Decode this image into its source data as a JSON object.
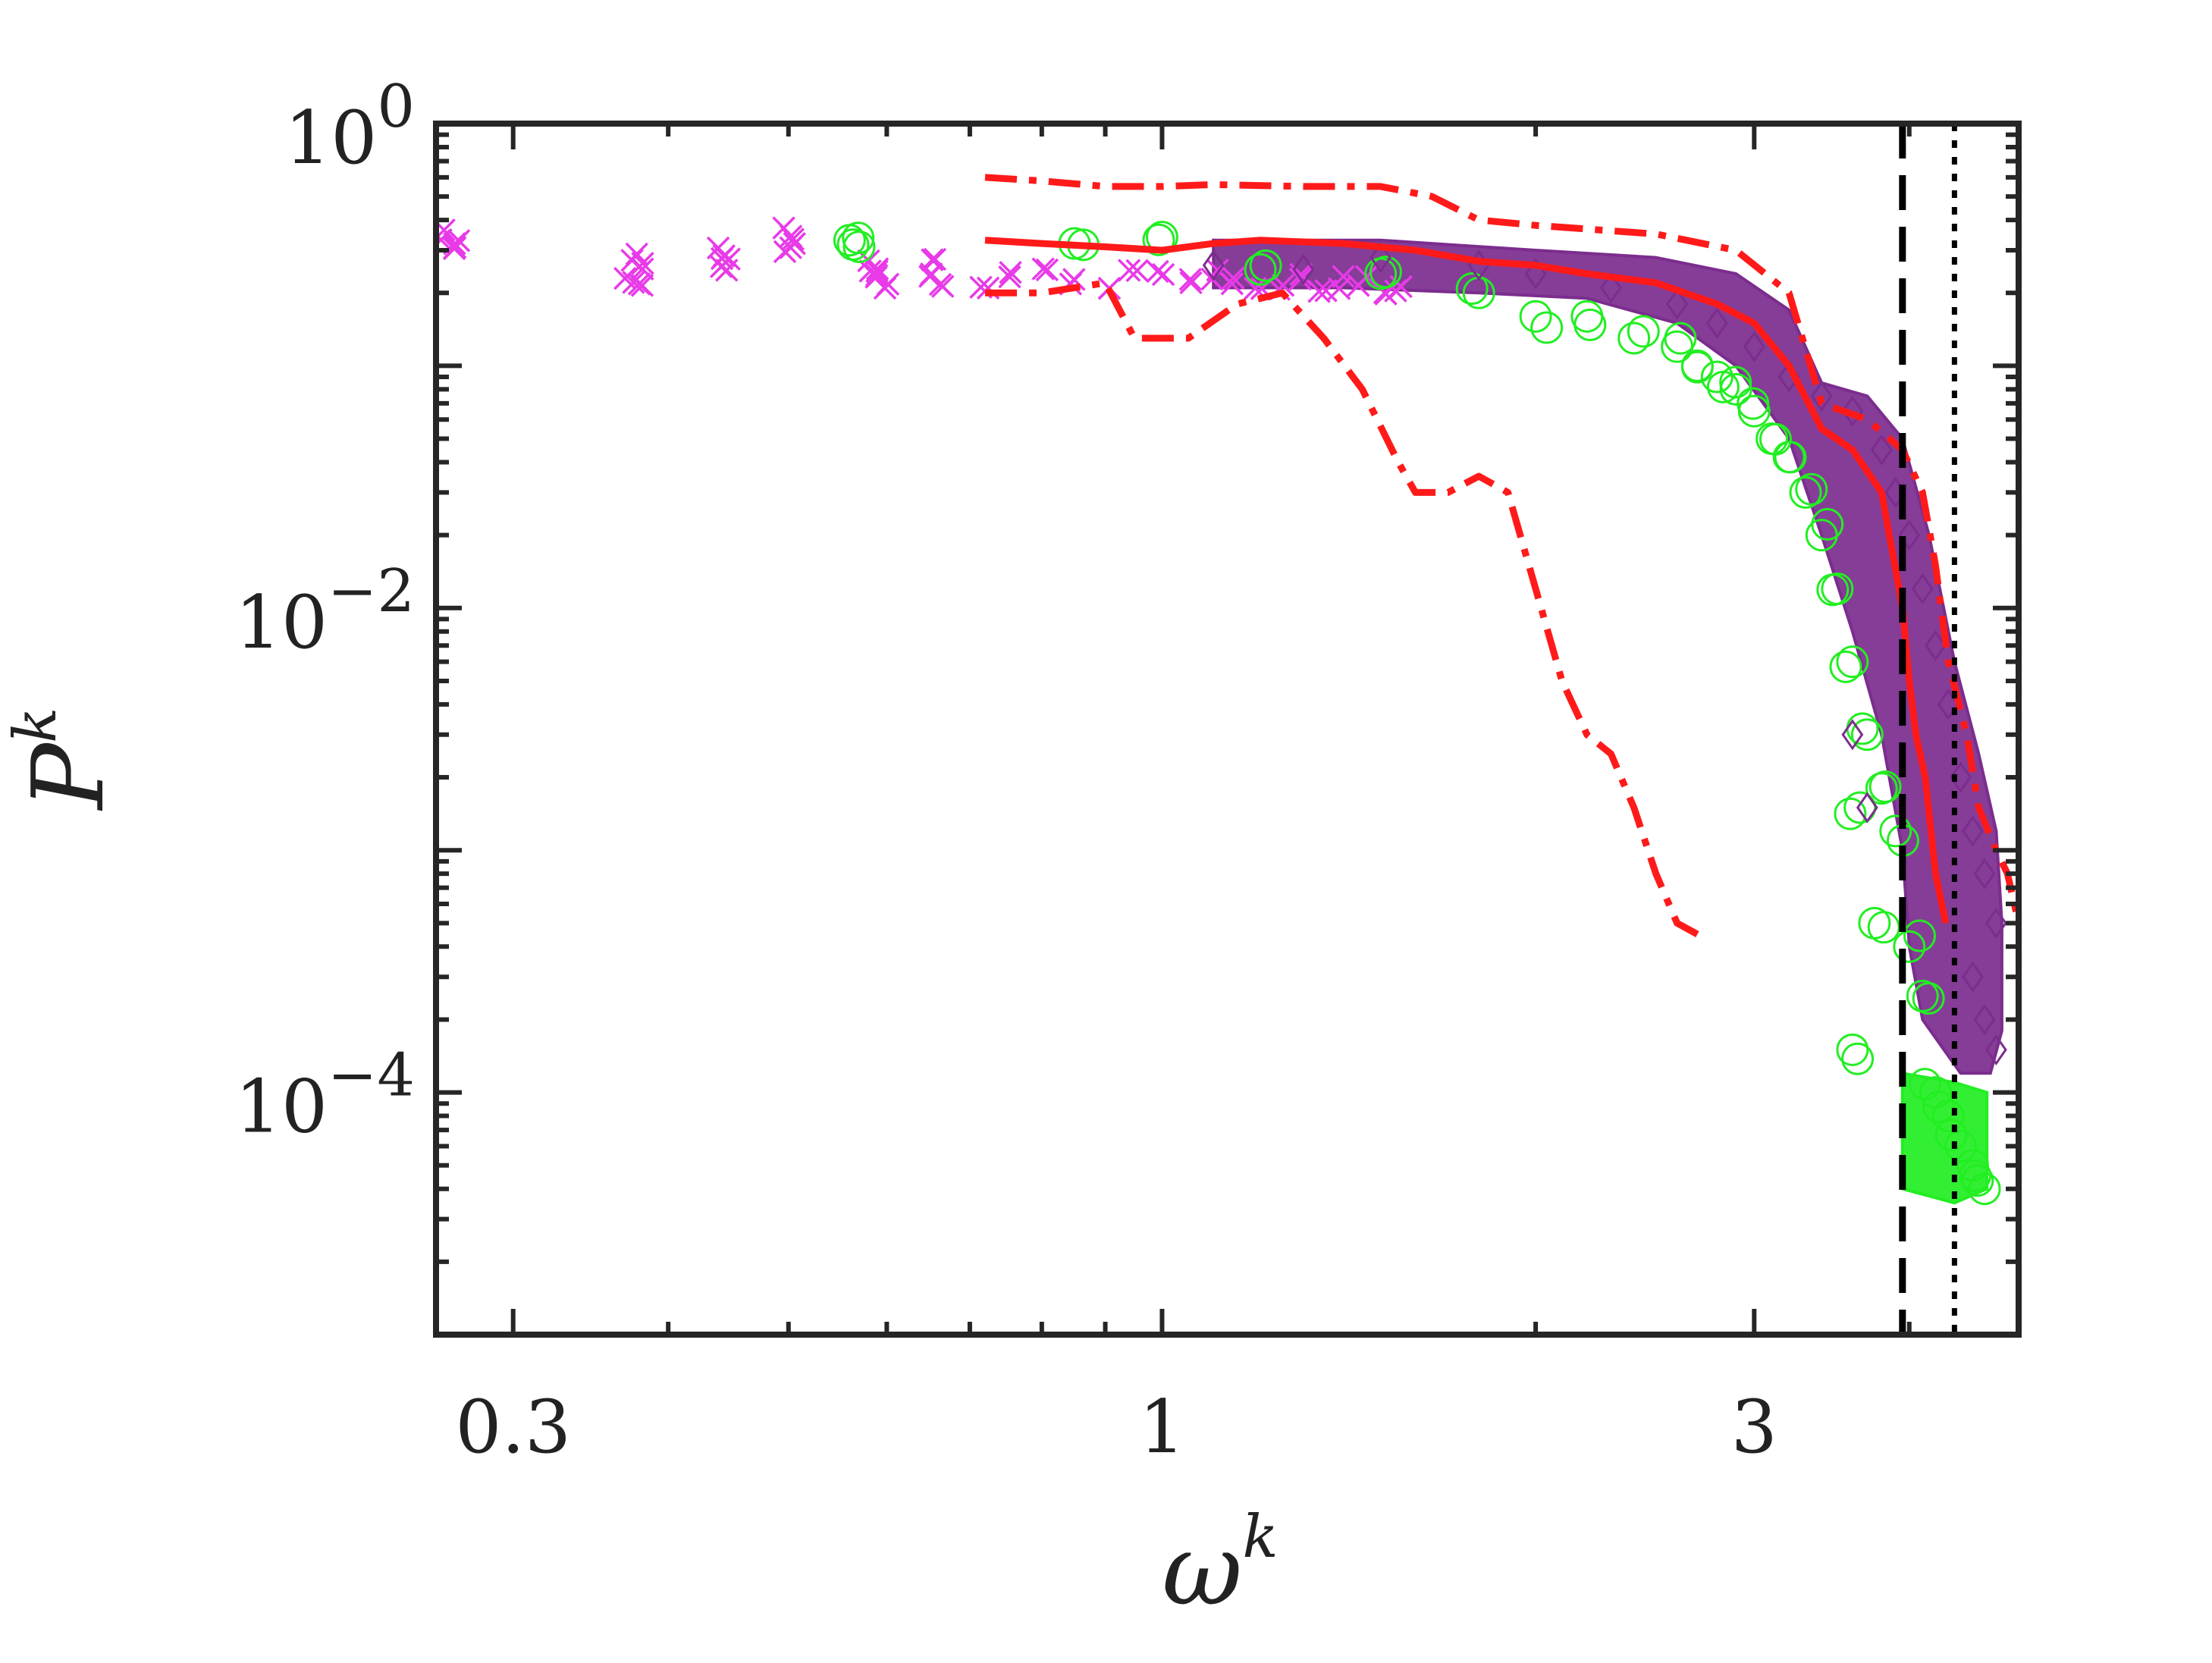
{
  "chart_data": {
    "type": "scatter",
    "xscale": "log",
    "yscale": "log",
    "xlim": [
      0.26,
      4.9
    ],
    "ylim": [
      1e-05,
      1
    ],
    "xlabel": {
      "base": "ω",
      "sup": "k"
    },
    "ylabel": {
      "base": "P",
      "sup": "k"
    },
    "xticks": [
      {
        "value": 0.3,
        "label": "0.3"
      },
      {
        "value": 1,
        "label": "1"
      },
      {
        "value": 3,
        "label": "3"
      }
    ],
    "yticks": [
      {
        "value": 0.0001,
        "base": "10",
        "exp": "−4"
      },
      {
        "value": 0.01,
        "base": "10",
        "exp": "−2"
      },
      {
        "value": 1,
        "base": "10",
        "exp": "0"
      }
    ],
    "vlines": [
      {
        "x": 3.95,
        "style": "dashed",
        "color": "#000000"
      },
      {
        "x": 4.35,
        "style": "dotted",
        "color": "#000000"
      }
    ],
    "colors": {
      "green": "#22ee22",
      "purple": "#7b2d8e",
      "magenta": "#e83ae8",
      "red": "#ff1a1a",
      "axis": "#262626"
    },
    "series": [
      {
        "marker": "x",
        "color": "#e83ae8",
        "points": [
          [
            0.265,
            0.35
          ],
          [
            0.27,
            0.33
          ],
          [
            0.268,
            0.31
          ],
          [
            0.375,
            0.28
          ],
          [
            0.38,
            0.25
          ],
          [
            0.372,
            0.23
          ],
          [
            0.378,
            0.22
          ],
          [
            0.44,
            0.3
          ],
          [
            0.445,
            0.27
          ],
          [
            0.442,
            0.25
          ],
          [
            0.5,
            0.36
          ],
          [
            0.505,
            0.32
          ],
          [
            0.498,
            0.29
          ],
          [
            0.58,
            0.26
          ],
          [
            0.59,
            0.23
          ],
          [
            0.6,
            0.21
          ],
          [
            0.585,
            0.25
          ],
          [
            0.65,
            0.24
          ],
          [
            0.66,
            0.21
          ],
          [
            0.655,
            0.27
          ],
          [
            0.72,
            0.22
          ],
          [
            0.76,
            0.23
          ],
          [
            0.8,
            0.24
          ],
          [
            0.85,
            0.23
          ],
          [
            0.9,
            0.22
          ],
          [
            0.95,
            0.24
          ],
          [
            1.0,
            0.23
          ],
          [
            1.05,
            0.22
          ],
          [
            1.1,
            0.24
          ],
          [
            1.15,
            0.23
          ],
          [
            1.2,
            0.22
          ],
          [
            1.25,
            0.22
          ],
          [
            1.3,
            0.23
          ],
          [
            1.35,
            0.21
          ],
          [
            1.4,
            0.22
          ],
          [
            1.45,
            0.22
          ],
          [
            1.5,
            0.21
          ],
          [
            1.55,
            0.21
          ]
        ]
      },
      {
        "marker": "circle",
        "color": "#22ee22",
        "points": [
          [
            0.56,
            0.33
          ],
          [
            0.57,
            0.31
          ],
          [
            0.85,
            0.32
          ],
          [
            1.0,
            0.34
          ],
          [
            1.2,
            0.25
          ],
          [
            1.5,
            0.24
          ],
          [
            1.8,
            0.2
          ],
          [
            2.0,
            0.16
          ],
          [
            2.2,
            0.16
          ],
          [
            2.4,
            0.13
          ],
          [
            2.6,
            0.12
          ],
          [
            2.7,
            0.1
          ],
          [
            2.8,
            0.09
          ],
          [
            2.9,
            0.08
          ],
          [
            3.0,
            0.065
          ],
          [
            3.1,
            0.05
          ],
          [
            3.2,
            0.042
          ],
          [
            3.3,
            0.03
          ],
          [
            3.4,
            0.02
          ],
          [
            3.5,
            0.012
          ],
          [
            3.6,
            0.006
          ],
          [
            3.7,
            0.003
          ],
          [
            3.8,
            0.0018
          ],
          [
            3.65,
            0.0015
          ],
          [
            3.9,
            0.0012
          ],
          [
            3.75,
            0.0005
          ],
          [
            4.0,
            0.0004
          ],
          [
            4.1,
            0.00025
          ],
          [
            3.6,
            0.00015
          ],
          [
            4.2,
            0.0001
          ],
          [
            4.3,
            8e-05
          ],
          [
            4.4,
            6e-05
          ],
          [
            4.5,
            5e-05
          ],
          [
            4.6,
            4e-05
          ]
        ]
      },
      {
        "marker": "diamond",
        "color": "#7b2d8e",
        "points": [
          [
            1.1,
            0.26
          ],
          [
            1.3,
            0.25
          ],
          [
            1.5,
            0.28
          ],
          [
            1.8,
            0.26
          ],
          [
            2.0,
            0.24
          ],
          [
            2.3,
            0.21
          ],
          [
            2.6,
            0.18
          ],
          [
            2.8,
            0.15
          ],
          [
            3.0,
            0.12
          ],
          [
            3.2,
            0.09
          ],
          [
            3.4,
            0.075
          ],
          [
            3.6,
            0.065
          ],
          [
            3.8,
            0.045
          ],
          [
            3.9,
            0.03
          ],
          [
            4.0,
            0.02
          ],
          [
            4.1,
            0.012
          ],
          [
            4.2,
            0.007
          ],
          [
            4.3,
            0.004
          ],
          [
            4.4,
            0.002
          ],
          [
            4.5,
            0.0012
          ],
          [
            4.6,
            0.0008
          ],
          [
            4.7,
            0.0005
          ],
          [
            4.5,
            0.0003
          ],
          [
            4.6,
            0.0002
          ],
          [
            4.7,
            0.00015
          ],
          [
            3.7,
            0.0015
          ],
          [
            3.6,
            0.003
          ]
        ]
      }
    ],
    "bands": [
      {
        "name_hidden": "purple cloud",
        "color": "#7b2d8e",
        "upper": [
          [
            1.1,
            0.33
          ],
          [
            1.5,
            0.33
          ],
          [
            2.0,
            0.3
          ],
          [
            2.5,
            0.28
          ],
          [
            2.9,
            0.24
          ],
          [
            3.2,
            0.17
          ],
          [
            3.4,
            0.085
          ],
          [
            3.7,
            0.075
          ],
          [
            3.95,
            0.05
          ],
          [
            4.15,
            0.02
          ],
          [
            4.35,
            0.006
          ],
          [
            4.55,
            0.0025
          ],
          [
            4.7,
            0.0012
          ],
          [
            4.75,
            0.0005
          ],
          [
            4.75,
            0.00018
          ]
        ],
        "lower": [
          [
            4.65,
            0.00012
          ],
          [
            4.4,
            0.00012
          ],
          [
            4.1,
            0.0002
          ],
          [
            4.0,
            0.0004
          ],
          [
            3.95,
            0.001
          ],
          [
            3.8,
            0.003
          ],
          [
            3.6,
            0.008
          ],
          [
            3.4,
            0.02
          ],
          [
            3.2,
            0.05
          ],
          [
            2.9,
            0.1
          ],
          [
            2.6,
            0.15
          ],
          [
            2.2,
            0.19
          ],
          [
            1.8,
            0.2
          ],
          [
            1.4,
            0.21
          ],
          [
            1.1,
            0.21
          ]
        ]
      },
      {
        "name_hidden": "green floor",
        "color": "#22ee22",
        "upper": [
          [
            3.95,
            0.00012
          ],
          [
            4.35,
            0.00011
          ],
          [
            4.62,
            0.0001
          ]
        ],
        "lower": [
          [
            4.62,
            4e-05
          ],
          [
            4.35,
            3.5e-05
          ],
          [
            3.95,
            4e-05
          ]
        ]
      }
    ],
    "lines": [
      {
        "style": "solid",
        "color": "#ff1a1a",
        "points": [
          [
            0.72,
            0.33
          ],
          [
            0.8,
            0.32
          ],
          [
            0.9,
            0.31
          ],
          [
            1.0,
            0.3
          ],
          [
            1.1,
            0.32
          ],
          [
            1.2,
            0.33
          ],
          [
            1.4,
            0.32
          ],
          [
            1.6,
            0.3
          ],
          [
            1.8,
            0.27
          ],
          [
            2.0,
            0.26
          ],
          [
            2.2,
            0.24
          ],
          [
            2.5,
            0.22
          ],
          [
            2.8,
            0.18
          ],
          [
            3.0,
            0.15
          ],
          [
            3.2,
            0.1
          ],
          [
            3.4,
            0.055
          ],
          [
            3.6,
            0.045
          ],
          [
            3.8,
            0.03
          ],
          [
            3.95,
            0.01
          ],
          [
            4.0,
            0.005
          ],
          [
            4.05,
            0.003
          ],
          [
            4.12,
            0.002
          ],
          [
            4.2,
            0.0008
          ],
          [
            4.28,
            0.0005
          ]
        ]
      },
      {
        "style": "dashdot",
        "color": "#ff1a1a",
        "points": [
          [
            0.72,
            0.6
          ],
          [
            0.8,
            0.58
          ],
          [
            0.9,
            0.55
          ],
          [
            1.0,
            0.55
          ],
          [
            1.1,
            0.56
          ],
          [
            1.3,
            0.55
          ],
          [
            1.5,
            0.55
          ],
          [
            1.65,
            0.5
          ],
          [
            1.8,
            0.4
          ],
          [
            2.0,
            0.38
          ],
          [
            2.5,
            0.35
          ],
          [
            2.9,
            0.3
          ],
          [
            3.2,
            0.2
          ],
          [
            3.4,
            0.07
          ],
          [
            3.7,
            0.06
          ],
          [
            3.95,
            0.045
          ],
          [
            4.1,
            0.03
          ],
          [
            4.2,
            0.015
          ],
          [
            4.3,
            0.006
          ],
          [
            4.45,
            0.003
          ],
          [
            4.55,
            0.0015
          ],
          [
            4.7,
            0.001
          ],
          [
            4.8,
            0.0008
          ],
          [
            4.9,
            0.0005
          ]
        ]
      },
      {
        "style": "dashdot",
        "color": "#ff1a1a",
        "points": [
          [
            0.72,
            0.2
          ],
          [
            0.8,
            0.2
          ],
          [
            0.9,
            0.22
          ],
          [
            0.95,
            0.13
          ],
          [
            1.05,
            0.13
          ],
          [
            1.15,
            0.18
          ],
          [
            1.25,
            0.2
          ],
          [
            1.35,
            0.13
          ],
          [
            1.45,
            0.08
          ],
          [
            1.55,
            0.04
          ],
          [
            1.6,
            0.03
          ],
          [
            1.7,
            0.03
          ],
          [
            1.8,
            0.035
          ],
          [
            1.9,
            0.03
          ],
          [
            2.0,
            0.012
          ],
          [
            2.1,
            0.005
          ],
          [
            2.2,
            0.003
          ],
          [
            2.3,
            0.0025
          ],
          [
            2.4,
            0.0015
          ],
          [
            2.5,
            0.0008
          ],
          [
            2.6,
            0.0005
          ],
          [
            2.7,
            0.00045
          ]
        ]
      }
    ]
  }
}
